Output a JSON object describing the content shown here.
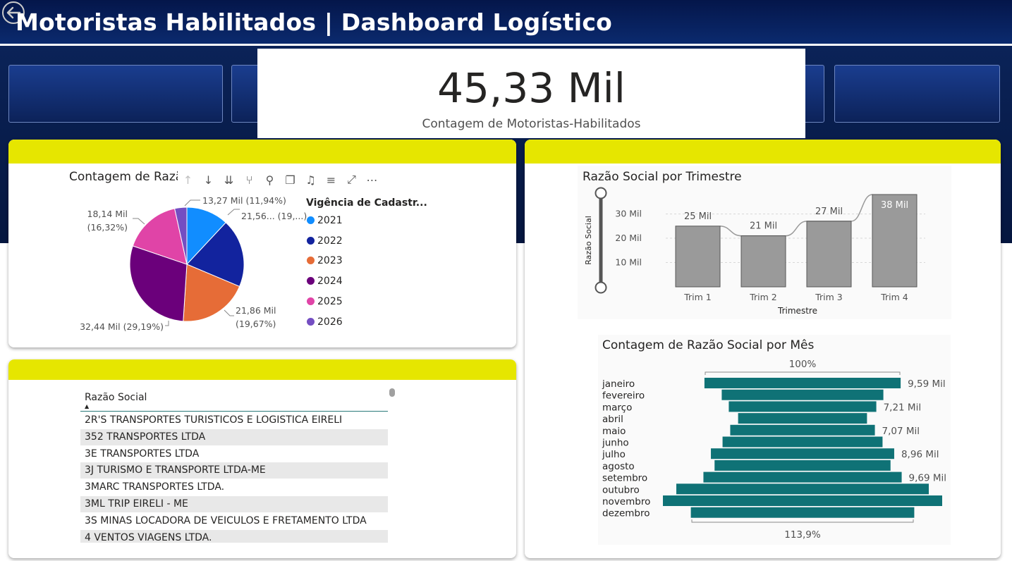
{
  "header": {
    "title": "Motoristas Habilitados | Dashboard Logístico"
  },
  "kpi": {
    "value": "45,33 Mil",
    "label": "Contagem de Motoristas-Habilitados"
  },
  "colors": {
    "accent_yellow": "#e6e600",
    "header_navy": "#0b2a6e",
    "teal": "#0f7276",
    "bar_gray": "#9a9a9a"
  },
  "pie": {
    "title": "Contagem de Razã",
    "legend_title": "Vigência de Cadastr...",
    "toolbar_icons": [
      "arrow-up-icon",
      "arrow-down-icon",
      "double-arrow-down-icon",
      "expand-hierarchy-icon",
      "pin-icon",
      "copy-icon",
      "bell-icon",
      "filter-icon",
      "focus-mode-icon",
      "more-options-icon"
    ],
    "labels": {
      "l2021": "13,27 Mil (11,94%)",
      "l2022": "21,56... (19,...)",
      "l2023a": "21,86 Mil",
      "l2023b": "(19,67%)",
      "l2024": "32,44 Mil (29,19%)",
      "l2025a": "18,14 Mil",
      "l2025b": "(16,32%)"
    }
  },
  "table": {
    "header": "Razão Social",
    "sort_glyph": "▲",
    "rows": [
      "2R'S TRANSPORTES TURISTICOS E LOGISTICA EIRELI",
      "352 TRANSPORTES LTDA",
      "3E TRANSPORTES LTDA",
      "3J TURISMO E TRANSPORTE LTDA-ME",
      "3MARC TRANSPORTES LTDA.",
      "3ML TRIP EIRELI - ME",
      "3S MINAS LOCADORA DE VEICULOS E FRETAMENTO LTDA",
      "4 VENTOS VIAGENS LTDA."
    ]
  },
  "trimestre": {
    "labels": [
      "25 Mil",
      "21 Mil",
      "27 Mil",
      "38 Mil"
    ],
    "tick_labels": [
      "10 Mil",
      "20 Mil",
      "30 Mil"
    ]
  },
  "mes": {
    "top_label": "100%",
    "bottom_label": "113,9%",
    "value_labels": [
      "9,59 Mil",
      "",
      "7,21 Mil",
      "",
      "7,07 Mil",
      "",
      "8,96 Mil",
      "",
      "9,69 Mil",
      "",
      "",
      ""
    ]
  },
  "chart_data": [
    {
      "type": "pie",
      "title": "Contagem de Razã",
      "legend_title": "Vigência de Cadastr...",
      "categories": [
        "2021",
        "2022",
        "2023",
        "2024",
        "2025",
        "2026"
      ],
      "values": [
        13270,
        21560,
        21860,
        32440,
        18140,
        3830
      ],
      "percent": [
        11.94,
        19.4,
        19.67,
        29.19,
        16.32,
        3.48
      ],
      "colors": [
        "#118dff",
        "#12239e",
        "#e66c37",
        "#6b007b",
        "#e044a7",
        "#744ec2"
      ],
      "legend_position": "right"
    },
    {
      "type": "bar",
      "title": "Razão Social por Trimestre",
      "categories": [
        "Trim 1",
        "Trim 2",
        "Trim 3",
        "Trim 4"
      ],
      "values": [
        25000,
        21000,
        27000,
        38000
      ],
      "xlabel": "Trimestre",
      "ylabel": "Razão Social",
      "ylim": [
        0,
        38000
      ],
      "yticks": [
        10000,
        20000,
        30000
      ],
      "grid": true
    },
    {
      "type": "bar",
      "title": "Contagem de Razão Social por Mês",
      "categories": [
        "janeiro",
        "fevereiro",
        "março",
        "abril",
        "maio",
        "junho",
        "julho",
        "agosto",
        "setembro",
        "outubro",
        "novembro",
        "dezembro"
      ],
      "values": [
        9590,
        7900,
        7210,
        6300,
        7070,
        7820,
        8960,
        8600,
        9690,
        12340,
        13650,
        10920
      ],
      "orientation": "horizontal-funnel"
    }
  ]
}
